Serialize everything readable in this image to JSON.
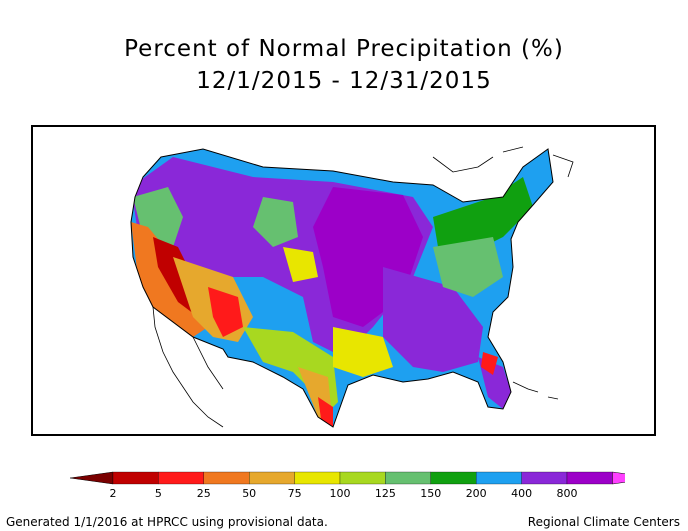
{
  "title": "Percent of Normal Precipitation (%)",
  "subtitle": "12/1/2015 - 12/31/2015",
  "legend": {
    "ticks": [
      "2",
      "5",
      "25",
      "50",
      "75",
      "100",
      "125",
      "150",
      "200",
      "400",
      "800"
    ],
    "colors": [
      "#7a0000",
      "#c00000",
      "#ff1a1a",
      "#f07820",
      "#e6a82d",
      "#e8e600",
      "#a8d820",
      "#66c070",
      "#10a010",
      "#1ea0f0",
      "#8a28d8",
      "#9c00c8",
      "#ff40ff"
    ]
  },
  "footer": {
    "left": "Generated 1/1/2016 at HPRCC using provisional data.",
    "right": "Regional Climate Centers"
  }
}
